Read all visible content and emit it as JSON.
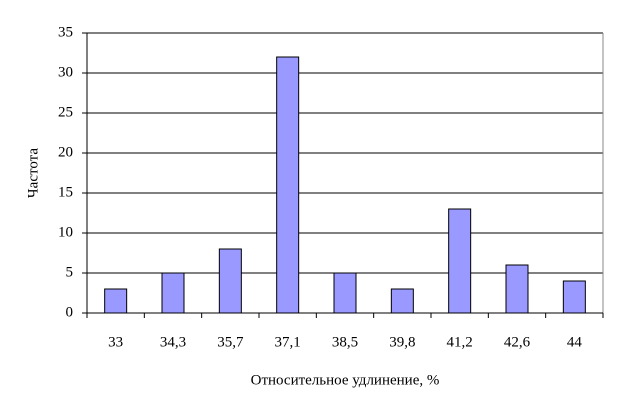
{
  "chart_data": {
    "type": "bar",
    "categories": [
      "33",
      "34,3",
      "35,7",
      "37,1",
      "38,5",
      "39,8",
      "41,2",
      "42,6",
      "44"
    ],
    "values": [
      3,
      5,
      8,
      32,
      5,
      3,
      13,
      6,
      4
    ],
    "color": "#9999ff",
    "xlabel": "Относительное удлинение, %",
    "ylabel": "Частота",
    "ylim": [
      0,
      35
    ],
    "yticks": [
      0,
      5,
      10,
      15,
      20,
      25,
      30,
      35
    ],
    "grid": true
  }
}
